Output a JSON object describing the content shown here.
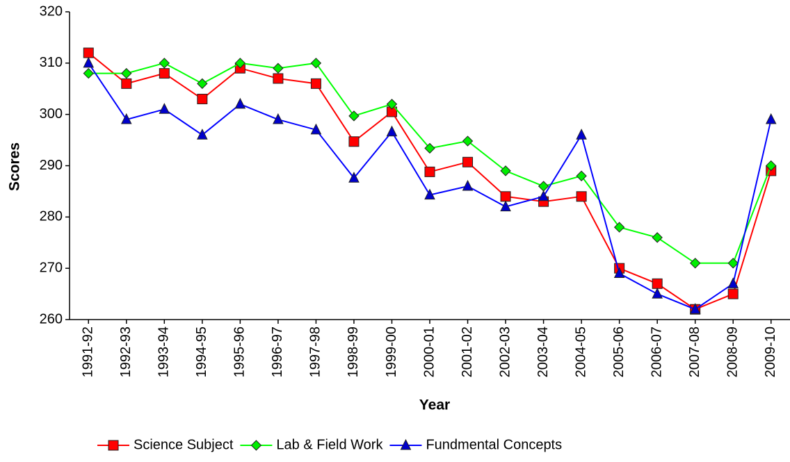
{
  "chart_data": {
    "type": "line",
    "x_label": "Year",
    "y_label": "Scores",
    "categories": [
      "1991-92",
      "1992-93",
      "1993-94",
      "1994-95",
      "1995-96",
      "1996-97",
      "1997-98",
      "1998-99",
      "1999-00",
      "2000-01",
      "2001-02",
      "2002-03",
      "2003-04",
      "2004-05",
      "2005-06",
      "2006-07",
      "2007-08",
      "2008-09",
      "2009-10"
    ],
    "series": [
      {
        "name": "Science Subject",
        "color": "#ff0000",
        "marker": "square",
        "marker_color": "#ff0000",
        "values": [
          312,
          306,
          308,
          303,
          309,
          307,
          306,
          294.7,
          300.5,
          288.8,
          290.7,
          284,
          283,
          284,
          270,
          267,
          262,
          265,
          289
        ]
      },
      {
        "name": "Lab & Field Work",
        "color": "#00ff00",
        "marker": "diamond",
        "marker_color": "#00ee00",
        "values": [
          308,
          308,
          310,
          306,
          310,
          309,
          310,
          299.7,
          302,
          293.4,
          294.8,
          289,
          286,
          288,
          278,
          276,
          271,
          271,
          290
        ]
      },
      {
        "name": "Fundmental Concepts",
        "color": "#0000ff",
        "marker": "triangle",
        "marker_color": "#0000cc",
        "values": [
          310,
          299,
          301,
          296,
          302,
          299,
          297,
          287.6,
          296.6,
          284.3,
          286,
          282,
          284,
          296,
          269,
          265,
          262,
          267,
          299
        ]
      }
    ],
    "ylim": [
      260,
      320
    ],
    "yticks": [
      260,
      270,
      280,
      290,
      300,
      310,
      320
    ],
    "grid": false,
    "legend": "bottom"
  }
}
